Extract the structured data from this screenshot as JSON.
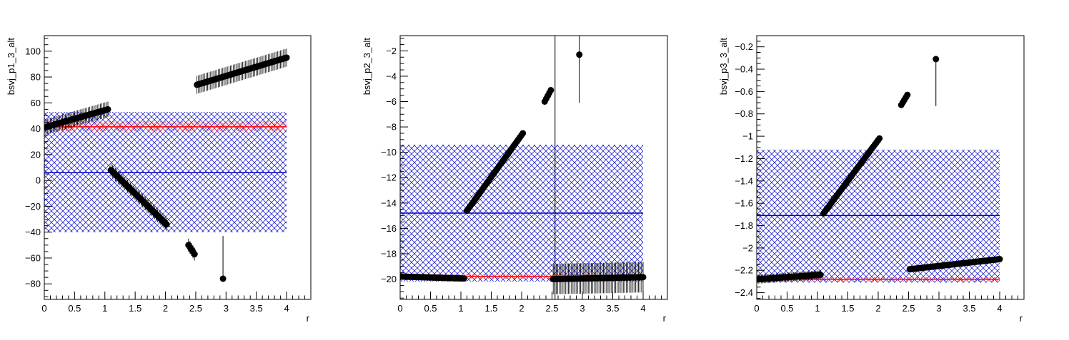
{
  "colors": {
    "fit": "#0000cc",
    "ref": "#ff0000",
    "points": "#000000",
    "frame": "#000000"
  },
  "chart_data": [
    {
      "type": "scatter",
      "ylabel": "bsvj_p1_3_alt",
      "xlabel": "r",
      "xlim": [
        0,
        4.4
      ],
      "ylim": [
        -92,
        112
      ],
      "xticks": [
        0,
        0.5,
        1,
        1.5,
        2,
        2.5,
        3,
        3.5,
        4
      ],
      "xtick_labels": [
        "0",
        "0.5",
        "1",
        "1.5",
        "2",
        "2.5",
        "3",
        "3.5",
        "4"
      ],
      "yticks": [
        -80,
        -60,
        -40,
        -20,
        0,
        20,
        40,
        60,
        80,
        100
      ],
      "ytick_labels": [
        "−80",
        "−60",
        "−40",
        "−20",
        "0",
        "20",
        "40",
        "60",
        "80",
        "100"
      ],
      "segments": [
        {
          "x0": 0,
          "x1": 1.05,
          "y0": 41,
          "y1": 55,
          "err": 6
        },
        {
          "x0": 1.1,
          "x1": 2.02,
          "y0": 8,
          "y1": -34,
          "err": 5
        },
        {
          "x0": 2.38,
          "x1": 2.48,
          "y0": -50,
          "y1": -57,
          "err": 5
        },
        {
          "x0": 2.52,
          "x1": 4.0,
          "y0": 74,
          "y1": 95,
          "err": 7
        }
      ],
      "isolated_points": [
        {
          "x": 2.95,
          "y": -76,
          "err_up": 33,
          "err_down": 0
        }
      ],
      "fit_line": {
        "y": 6,
        "band": [
          -40,
          53
        ]
      },
      "ref_line": {
        "y": 41.5,
        "band": [
          38,
          46
        ]
      },
      "band_xlim": [
        0,
        4.0
      ]
    },
    {
      "type": "scatter",
      "ylabel": "bsvj_p2_3_alt",
      "xlabel": "r",
      "xlim": [
        0,
        4.4
      ],
      "ylim": [
        -21.6,
        -0.8
      ],
      "xticks": [
        0,
        0.5,
        1,
        1.5,
        2,
        2.5,
        3,
        3.5,
        4
      ],
      "xtick_labels": [
        "0",
        "0.5",
        "1",
        "1.5",
        "2",
        "2.5",
        "3",
        "3.5",
        "4"
      ],
      "yticks": [
        -20,
        -18,
        -16,
        -14,
        -12,
        -10,
        -8,
        -6,
        -4,
        -2
      ],
      "ytick_labels": [
        "−20",
        "−18",
        "−16",
        "−14",
        "−12",
        "−10",
        "−8",
        "−6",
        "−4",
        "−2"
      ],
      "segments": [
        {
          "x0": 0,
          "x1": 1.05,
          "y0": -19.8,
          "y1": -19.95,
          "err": 0.2
        },
        {
          "x0": 1.1,
          "x1": 2.02,
          "y0": -14.6,
          "y1": -8.5,
          "err": 0.15
        },
        {
          "x0": 2.38,
          "x1": 2.48,
          "y0": -6.0,
          "y1": -5.1,
          "err": 0.1
        },
        {
          "x0": 2.52,
          "x1": 4.0,
          "y0": -20.0,
          "y1": -19.85,
          "err": 1.2
        }
      ],
      "isolated_points": [
        {
          "x": 2.95,
          "y": -2.3,
          "err_up": 2.5,
          "err_down": 3.8
        },
        {
          "x": 2.55,
          "y": -20.0,
          "err_up": 20.0,
          "err_down": 2.0
        }
      ],
      "fit_line": {
        "y": -14.8,
        "band": [
          -20.2,
          -9.4
        ]
      },
      "ref_line": {
        "y": -19.8,
        "band": [
          -20.0,
          -19.6
        ]
      },
      "band_xlim": [
        0,
        4.0
      ]
    },
    {
      "type": "scatter",
      "ylabel": "bsvj_p3_3_alt",
      "xlabel": "r",
      "xlim": [
        0,
        4.4
      ],
      "ylim": [
        -2.46,
        -0.1
      ],
      "xticks": [
        0,
        0.5,
        1,
        1.5,
        2,
        2.5,
        3,
        3.5,
        4
      ],
      "xtick_labels": [
        "0",
        "0.5",
        "1",
        "1.5",
        "2",
        "2.5",
        "3",
        "3.5",
        "4"
      ],
      "yticks": [
        -2.4,
        -2.2,
        -2,
        -1.8,
        -1.6,
        -1.4,
        -1.2,
        -1,
        -0.8,
        -0.6,
        -0.4,
        -0.2
      ],
      "ytick_labels": [
        "−2.4",
        "−2.2",
        "−2",
        "−1.8",
        "−1.6",
        "−1.4",
        "−1.2",
        "−1",
        "−0.8",
        "−0.6",
        "−0.4",
        "−0.2"
      ],
      "segments": [
        {
          "x0": 0,
          "x1": 1.05,
          "y0": -2.28,
          "y1": -2.24,
          "err": 0.04
        },
        {
          "x0": 1.1,
          "x1": 2.02,
          "y0": -1.69,
          "y1": -1.02,
          "err": 0.01
        },
        {
          "x0": 2.38,
          "x1": 2.48,
          "y0": -0.72,
          "y1": -0.63,
          "err": 0.01
        },
        {
          "x0": 2.52,
          "x1": 4.0,
          "y0": -2.19,
          "y1": -2.1,
          "err": 0.01
        }
      ],
      "isolated_points": [
        {
          "x": 2.95,
          "y": -0.31,
          "err_up": 0.0,
          "err_down": 0.42
        }
      ],
      "fit_line": {
        "y": -1.71,
        "band": [
          -2.31,
          -1.12
        ]
      },
      "ref_line": {
        "y": -2.28,
        "band": [
          -2.3,
          -2.26
        ]
      },
      "band_xlim": [
        0,
        4.0
      ]
    }
  ]
}
